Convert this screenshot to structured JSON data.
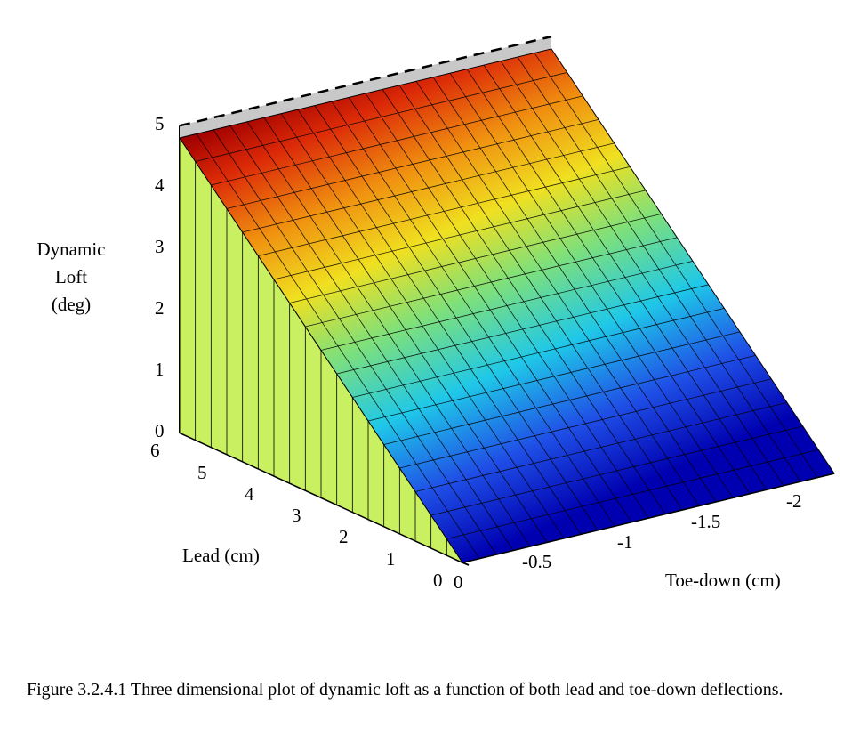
{
  "chart_data": {
    "type": "surface",
    "title": "",
    "xlabel": "Toe-down (cm)",
    "ylabel": "Lead (cm)",
    "zlabel": [
      "Dynamic",
      "Loft",
      "(deg)"
    ],
    "x_ticks": [
      "0",
      "-0.5",
      "-1",
      "-1.5",
      "-2"
    ],
    "y_ticks": [
      "0",
      "1",
      "2",
      "3",
      "4",
      "5",
      "6"
    ],
    "z_ticks": [
      "0",
      "1",
      "2",
      "3",
      "4",
      "5"
    ],
    "xlim": [
      0,
      -2.2
    ],
    "ylim": [
      0,
      6
    ],
    "zlim": [
      0,
      5
    ],
    "grid": false,
    "colormap": "jet",
    "description_of_relation": "z varies linearly with lead; independent of toe-down",
    "surface": {
      "lead": [
        0,
        6
      ],
      "toe_down": [
        0,
        -2.2
      ],
      "z_at_lead_0": 0,
      "z_at_lead_6": 4.8
    }
  },
  "caption": "Figure 3.2.4.1 Three dimensional plot of dynamic loft as a function of both lead and toe-down deflections."
}
